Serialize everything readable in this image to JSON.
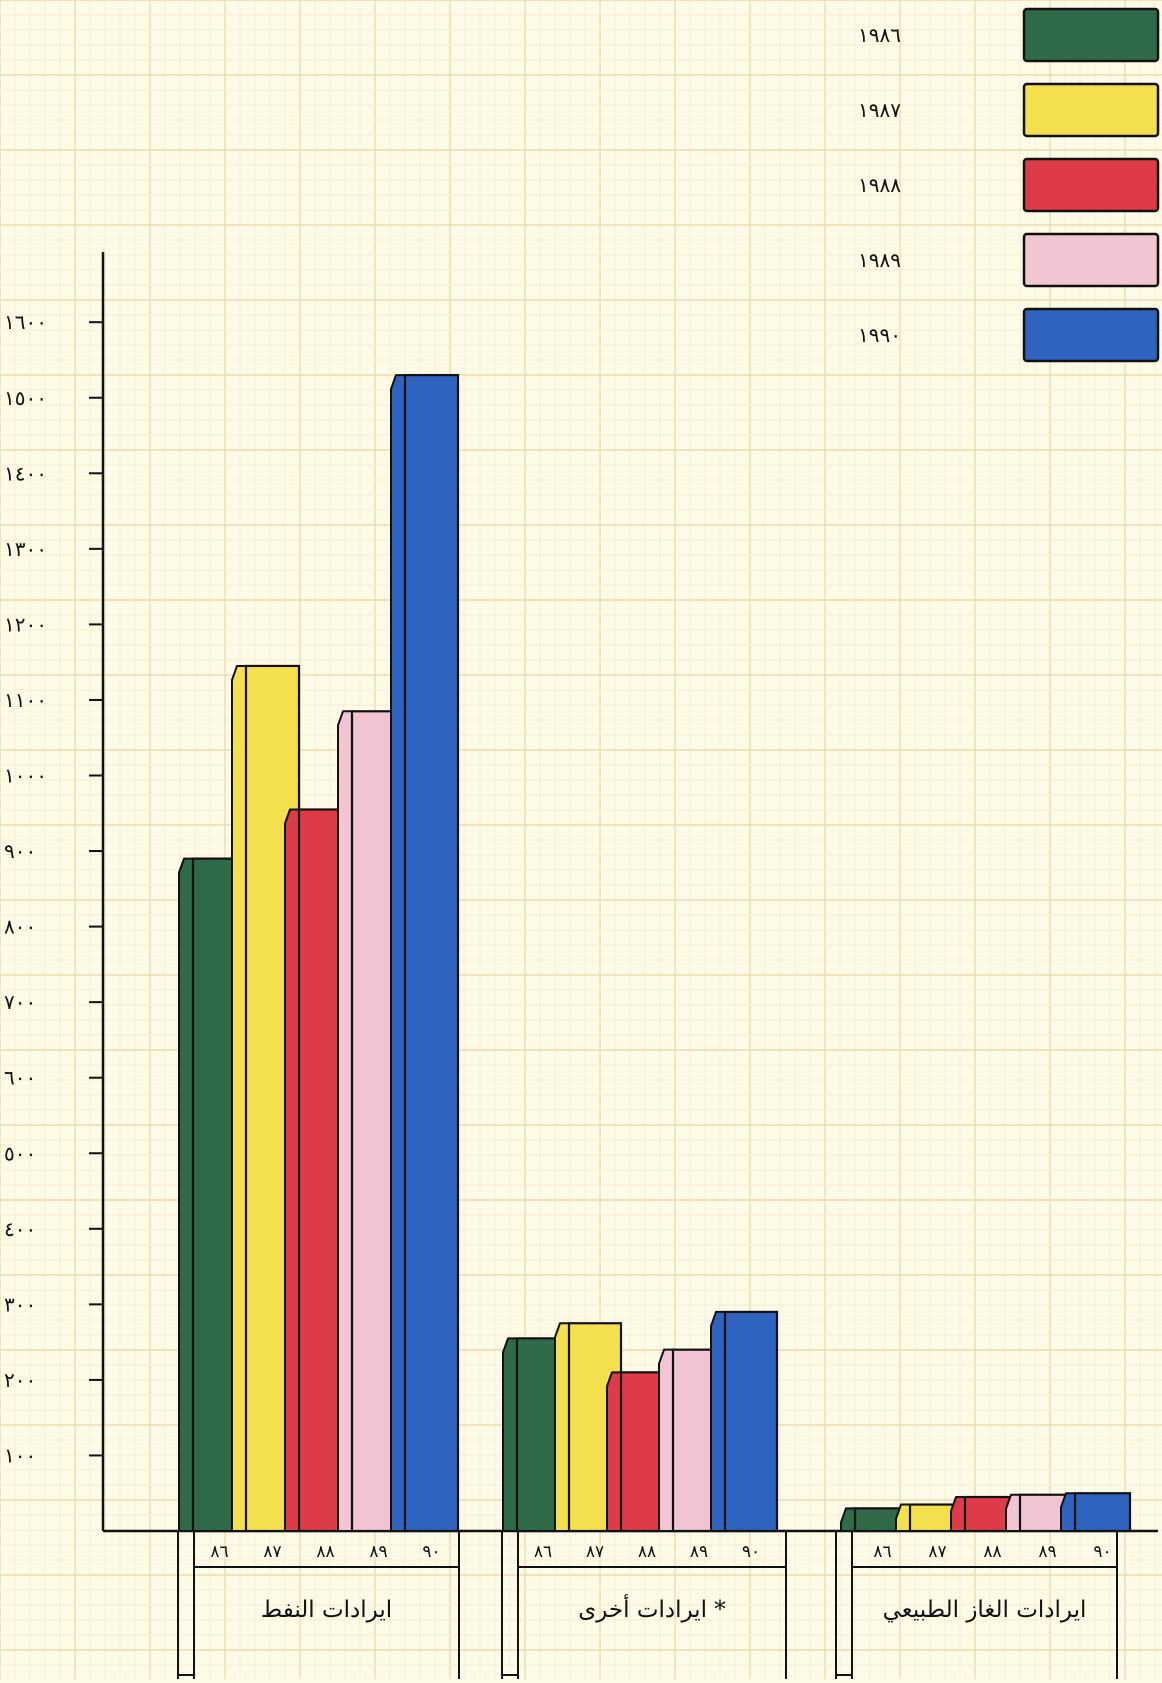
{
  "chart_data": {
    "type": "bar",
    "title": "",
    "xlabel": "",
    "ylabel": "",
    "ylim": [
      0,
      1700
    ],
    "yticks": [
      {
        "value": 100,
        "label": "١٠٠"
      },
      {
        "value": 200,
        "label": "٢٠٠"
      },
      {
        "value": 300,
        "label": "٣٠٠"
      },
      {
        "value": 400,
        "label": "٤٠٠"
      },
      {
        "value": 500,
        "label": "٥٠٠"
      },
      {
        "value": 600,
        "label": "٦٠٠"
      },
      {
        "value": 700,
        "label": "٧٠٠"
      },
      {
        "value": 800,
        "label": "٨٠٠"
      },
      {
        "value": 900,
        "label": "٩٠٠"
      },
      {
        "value": 1000,
        "label": "١٠٠٠"
      },
      {
        "value": 1100,
        "label": "١١٠٠"
      },
      {
        "value": 1200,
        "label": "١٢٠٠"
      },
      {
        "value": 1300,
        "label": "١٣٠٠"
      },
      {
        "value": 1400,
        "label": "١٤٠٠"
      },
      {
        "value": 1500,
        "label": "١٥٠٠"
      },
      {
        "value": 1600,
        "label": "١٦٠٠"
      }
    ],
    "grid": true,
    "legend_position": "top-right",
    "categories": [
      "ايرادات النفط",
      "ايرادات أخرى *",
      "ايرادات الغاز الطبيعي"
    ],
    "bar_labels": [
      "٨٦",
      "٨٧",
      "٨٨",
      "٨٩",
      "٩٠"
    ],
    "series": [
      {
        "name": "١٩٨٦",
        "color": "#2f6b48",
        "values": [
          890,
          255,
          30
        ]
      },
      {
        "name": "١٩٨٧",
        "color": "#f4df4c",
        "values": [
          1145,
          275,
          35
        ]
      },
      {
        "name": "١٩٨٨",
        "color": "#dc3b47",
        "values": [
          955,
          210,
          45
        ]
      },
      {
        "name": "١٩٨٩",
        "color": "#f1c5d1",
        "values": [
          1085,
          240,
          48
        ]
      },
      {
        "name": "١٩٩٠",
        "color": "#2e63bf",
        "values": [
          1530,
          290,
          50
        ]
      }
    ]
  }
}
